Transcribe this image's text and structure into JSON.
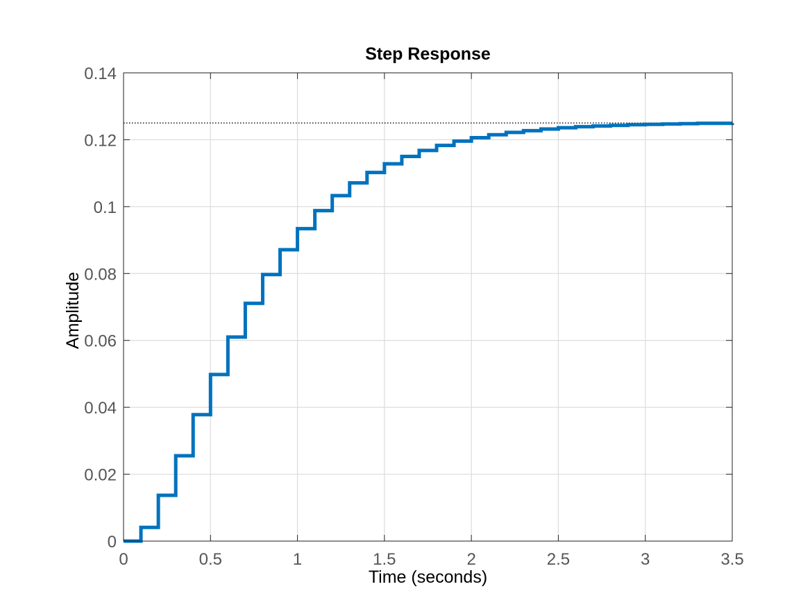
{
  "chart_data": {
    "type": "line",
    "subtype": "stairs",
    "title": "Step Response",
    "xlabel": "Time (seconds)",
    "ylabel": "Amplitude",
    "xlim": [
      0,
      3.5
    ],
    "ylim": [
      0,
      0.14
    ],
    "xticks": [
      "0",
      "0.5",
      "1",
      "1.5",
      "2",
      "2.5",
      "3",
      "3.5"
    ],
    "yticks": [
      "0",
      "0.02",
      "0.04",
      "0.06",
      "0.08",
      "0.1",
      "0.12",
      "0.14"
    ],
    "grid": true,
    "series": [
      {
        "color": "#0072BD",
        "x": [
          0,
          0.1,
          0.2,
          0.3,
          0.4,
          0.5,
          0.6,
          0.7,
          0.8,
          0.9,
          1.0,
          1.1,
          1.2,
          1.3,
          1.4,
          1.5,
          1.6,
          1.7,
          1.8,
          1.9,
          2.0,
          2.1,
          2.2,
          2.3,
          2.4,
          2.5,
          2.6,
          2.7,
          2.8,
          2.9,
          3.0,
          3.1,
          3.2,
          3.3,
          3.4,
          3.5
        ],
        "y": [
          0,
          0.0041,
          0.0137,
          0.0255,
          0.0378,
          0.0498,
          0.061,
          0.0711,
          0.0797,
          0.0871,
          0.0934,
          0.0988,
          0.1033,
          0.1071,
          0.1102,
          0.1128,
          0.115,
          0.1168,
          0.1183,
          0.1196,
          0.1206,
          0.1215,
          0.1222,
          0.1227,
          0.1232,
          0.1236,
          0.1239,
          0.1241,
          0.1243,
          0.1245,
          0.1246,
          0.1247,
          0.1248,
          0.1249,
          0.1249,
          0.125
        ]
      }
    ],
    "reference_line": {
      "y": 0.125,
      "style": "dotted",
      "color": "#000000"
    }
  }
}
